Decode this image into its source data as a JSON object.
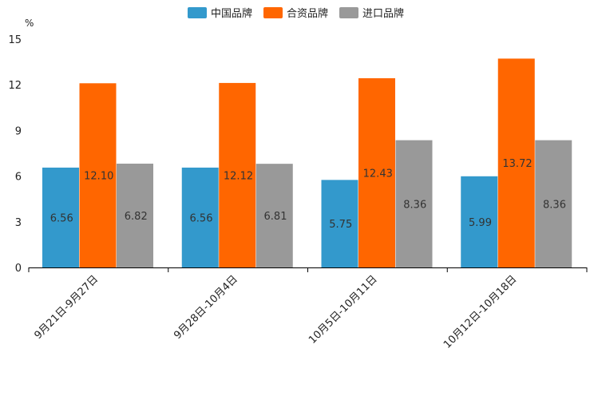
{
  "chart_data": {
    "type": "bar",
    "unit_label": "%",
    "categories": [
      "9月21日-9月27日",
      "9月28日-10月4日",
      "10月5日-10月11日",
      "10月12日-10月18日"
    ],
    "series": [
      {
        "name": "中国品牌",
        "color": "#3399cc",
        "values": [
          6.56,
          6.56,
          5.75,
          5.99
        ],
        "labels": [
          "6.56",
          "6.56",
          "5.75",
          "5.99"
        ]
      },
      {
        "name": "合资品牌",
        "color": "#ff6600",
        "values": [
          12.1,
          12.12,
          12.43,
          13.72
        ],
        "labels": [
          "12.10",
          "12.12",
          "12.43",
          "13.72"
        ]
      },
      {
        "name": "进口品牌",
        "color": "#999999",
        "values": [
          6.82,
          6.81,
          8.36,
          8.36
        ],
        "labels": [
          "6.82",
          "6.81",
          "8.36",
          "8.36"
        ]
      }
    ],
    "yticks": [
      "0",
      "3",
      "6",
      "9",
      "12",
      "15"
    ],
    "ylim": [
      0,
      15
    ],
    "legend_position": "top-center",
    "grid": false
  }
}
